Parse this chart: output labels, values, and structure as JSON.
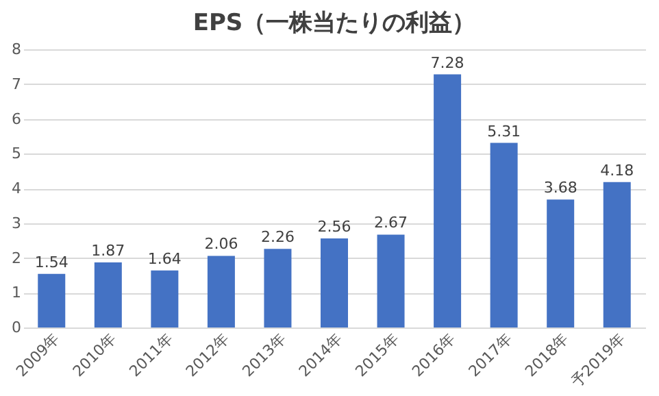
{
  "chart_data": {
    "type": "bar",
    "title": "EPS（一株当たりの利益）",
    "categories": [
      "2009年",
      "2010年",
      "2011年",
      "2012年",
      "2013年",
      "2014年",
      "2015年",
      "2016年",
      "2017年",
      "2018年",
      "予2019年"
    ],
    "values": [
      1.54,
      1.87,
      1.64,
      2.06,
      2.26,
      2.56,
      2.67,
      7.28,
      5.31,
      3.68,
      4.18
    ],
    "color": "#4472c4",
    "ylim": [
      0,
      8
    ],
    "yticks": [
      0,
      1,
      2,
      3,
      4,
      5,
      6,
      7,
      8
    ],
    "grid": "y",
    "data_labels": true
  }
}
